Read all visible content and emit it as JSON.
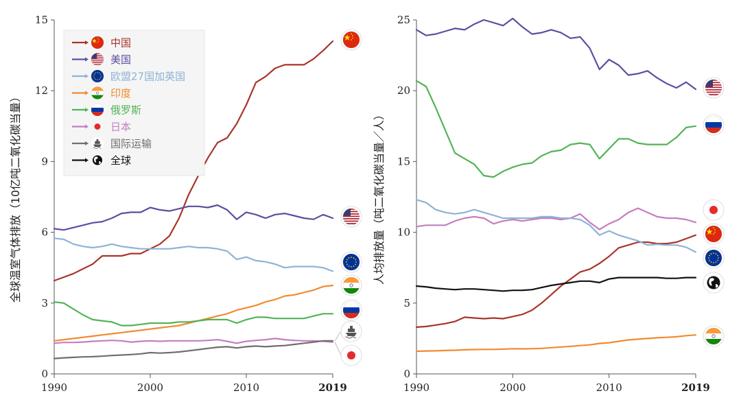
{
  "chart_data": [
    {
      "type": "line",
      "title": "",
      "xlabel": "",
      "ylabel": "全球温室气体排放（10亿吨二氧化碳当量）",
      "xlim": [
        1990,
        2019
      ],
      "ylim": [
        0,
        15
      ],
      "xticks": [
        "1990",
        "2000",
        "2010",
        "2019"
      ],
      "yticks": [
        "0",
        "3",
        "6",
        "9",
        "12",
        "15"
      ],
      "legend_position": "top-left",
      "series": [
        {
          "name": "中国",
          "color": "#a8342a",
          "icon": "china-flag-icon",
          "x": [
            1990,
            1991,
            1992,
            1993,
            1994,
            1995,
            1996,
            1997,
            1998,
            1999,
            2000,
            2001,
            2002,
            2003,
            2004,
            2005,
            2006,
            2007,
            2008,
            2009,
            2010,
            2011,
            2012,
            2013,
            2014,
            2015,
            2016,
            2017,
            2018,
            2019
          ],
          "values": [
            3.95,
            4.1,
            4.25,
            4.45,
            4.65,
            5.0,
            5.0,
            5.0,
            5.1,
            5.1,
            5.3,
            5.5,
            5.85,
            6.6,
            7.6,
            8.4,
            9.15,
            9.8,
            10.0,
            10.6,
            11.4,
            12.35,
            12.6,
            12.95,
            13.1,
            13.1,
            13.1,
            13.35,
            13.7,
            14.1
          ]
        },
        {
          "name": "美国",
          "color": "#5c4ea0",
          "icon": "usa-flag-icon",
          "x": [
            1990,
            1991,
            1992,
            1993,
            1994,
            1995,
            1996,
            1997,
            1998,
            1999,
            2000,
            2001,
            2002,
            2003,
            2004,
            2005,
            2006,
            2007,
            2008,
            2009,
            2010,
            2011,
            2012,
            2013,
            2014,
            2015,
            2016,
            2017,
            2018,
            2019
          ],
          "values": [
            6.15,
            6.1,
            6.2,
            6.3,
            6.4,
            6.45,
            6.6,
            6.8,
            6.85,
            6.85,
            7.05,
            6.95,
            6.9,
            7.0,
            7.1,
            7.1,
            7.05,
            7.15,
            6.95,
            6.55,
            6.85,
            6.75,
            6.6,
            6.75,
            6.8,
            6.7,
            6.6,
            6.55,
            6.75,
            6.6
          ]
        },
        {
          "name": "欧盟27国加英国",
          "color": "#8eb3d6",
          "icon": "eu-flag-icon",
          "x": [
            1990,
            1991,
            1992,
            1993,
            1994,
            1995,
            1996,
            1997,
            1998,
            1999,
            2000,
            2001,
            2002,
            2003,
            2004,
            2005,
            2006,
            2007,
            2008,
            2009,
            2010,
            2011,
            2012,
            2013,
            2014,
            2015,
            2016,
            2017,
            2018,
            2019
          ],
          "values": [
            5.75,
            5.7,
            5.5,
            5.4,
            5.35,
            5.4,
            5.5,
            5.4,
            5.35,
            5.3,
            5.3,
            5.3,
            5.3,
            5.35,
            5.4,
            5.35,
            5.35,
            5.3,
            5.2,
            4.85,
            4.95,
            4.8,
            4.75,
            4.65,
            4.5,
            4.55,
            4.55,
            4.55,
            4.5,
            4.35
          ]
        },
        {
          "name": "印度",
          "color": "#f28a30",
          "icon": "india-flag-icon",
          "x": [
            1990,
            1991,
            1992,
            1993,
            1994,
            1995,
            1996,
            1997,
            1998,
            1999,
            2000,
            2001,
            2002,
            2003,
            2004,
            2005,
            2006,
            2007,
            2008,
            2009,
            2010,
            2011,
            2012,
            2013,
            2014,
            2015,
            2016,
            2017,
            2018,
            2019
          ],
          "values": [
            1.4,
            1.45,
            1.5,
            1.55,
            1.6,
            1.65,
            1.7,
            1.75,
            1.8,
            1.85,
            1.9,
            1.95,
            2.0,
            2.05,
            2.15,
            2.25,
            2.35,
            2.45,
            2.55,
            2.7,
            2.8,
            2.9,
            3.05,
            3.15,
            3.3,
            3.35,
            3.45,
            3.55,
            3.7,
            3.75
          ]
        },
        {
          "name": "俄罗斯",
          "color": "#52b356",
          "icon": "russia-flag-icon",
          "x": [
            1990,
            1991,
            1992,
            1993,
            1994,
            1995,
            1996,
            1997,
            1998,
            1999,
            2000,
            2001,
            2002,
            2003,
            2004,
            2005,
            2006,
            2007,
            2008,
            2009,
            2010,
            2011,
            2012,
            2013,
            2014,
            2015,
            2016,
            2017,
            2018,
            2019
          ],
          "values": [
            3.05,
            3.0,
            2.75,
            2.5,
            2.3,
            2.25,
            2.2,
            2.05,
            2.05,
            2.1,
            2.15,
            2.15,
            2.15,
            2.2,
            2.2,
            2.25,
            2.3,
            2.3,
            2.3,
            2.15,
            2.3,
            2.4,
            2.4,
            2.35,
            2.35,
            2.35,
            2.35,
            2.45,
            2.55,
            2.55
          ]
        },
        {
          "name": "日本",
          "color": "#c47ec0",
          "icon": "japan-flag-icon",
          "x": [
            1990,
            1991,
            1992,
            1993,
            1994,
            1995,
            1996,
            1997,
            1998,
            1999,
            2000,
            2001,
            2002,
            2003,
            2004,
            2005,
            2006,
            2007,
            2008,
            2009,
            2010,
            2011,
            2012,
            2013,
            2014,
            2015,
            2016,
            2017,
            2018,
            2019
          ],
          "values": [
            1.3,
            1.33,
            1.33,
            1.35,
            1.38,
            1.4,
            1.42,
            1.4,
            1.35,
            1.38,
            1.4,
            1.38,
            1.4,
            1.4,
            1.4,
            1.4,
            1.42,
            1.45,
            1.38,
            1.3,
            1.38,
            1.42,
            1.45,
            1.5,
            1.45,
            1.42,
            1.4,
            1.4,
            1.38,
            1.35
          ]
        },
        {
          "name": "国际运输",
          "color": "#6e6e6e",
          "icon": "ship-icon",
          "x": [
            1990,
            1991,
            1992,
            1993,
            1994,
            1995,
            1996,
            1997,
            1998,
            1999,
            2000,
            2001,
            2002,
            2003,
            2004,
            2005,
            2006,
            2007,
            2008,
            2009,
            2010,
            2011,
            2012,
            2013,
            2014,
            2015,
            2016,
            2017,
            2018,
            2019
          ],
          "values": [
            0.65,
            0.68,
            0.7,
            0.72,
            0.73,
            0.75,
            0.78,
            0.8,
            0.82,
            0.85,
            0.9,
            0.88,
            0.9,
            0.93,
            0.98,
            1.03,
            1.08,
            1.13,
            1.15,
            1.1,
            1.15,
            1.18,
            1.15,
            1.18,
            1.2,
            1.25,
            1.3,
            1.35,
            1.4,
            1.4
          ]
        },
        {
          "name": "全球",
          "color": "#111111",
          "icon": "globe-icon",
          "x": [],
          "values": []
        }
      ]
    },
    {
      "type": "line",
      "title": "",
      "xlabel": "",
      "ylabel": "人均排放量（吨二氧化碳当量／人）",
      "xlim": [
        1990,
        2019
      ],
      "ylim": [
        0,
        25
      ],
      "xticks": [
        "1990",
        "2000",
        "2010",
        "2019"
      ],
      "yticks": [
        "0",
        "5",
        "10",
        "15",
        "20",
        "25"
      ],
      "series": [
        {
          "name": "美国",
          "color": "#5c4ea0",
          "icon": "usa-flag-icon",
          "x": [
            1990,
            1991,
            1992,
            1993,
            1994,
            1995,
            1996,
            1997,
            1998,
            1999,
            2000,
            2001,
            2002,
            2003,
            2004,
            2005,
            2006,
            2007,
            2008,
            2009,
            2010,
            2011,
            2012,
            2013,
            2014,
            2015,
            2016,
            2017,
            2018,
            2019
          ],
          "values": [
            24.3,
            23.9,
            24.0,
            24.2,
            24.4,
            24.3,
            24.7,
            25.0,
            24.8,
            24.6,
            25.1,
            24.5,
            24.0,
            24.1,
            24.3,
            24.1,
            23.7,
            23.8,
            23.0,
            21.5,
            22.2,
            21.8,
            21.1,
            21.2,
            21.4,
            20.9,
            20.5,
            20.2,
            20.6,
            20.1
          ]
        },
        {
          "name": "俄罗斯",
          "color": "#52b356",
          "icon": "russia-flag-icon",
          "x": [
            1990,
            1991,
            1992,
            1993,
            1994,
            1995,
            1996,
            1997,
            1998,
            1999,
            2000,
            2001,
            2002,
            2003,
            2004,
            2005,
            2006,
            2007,
            2008,
            2009,
            2010,
            2011,
            2012,
            2013,
            2014,
            2015,
            2016,
            2017,
            2018,
            2019
          ],
          "values": [
            20.7,
            20.3,
            18.8,
            17.2,
            15.6,
            15.2,
            14.8,
            14.0,
            13.9,
            14.3,
            14.6,
            14.8,
            14.9,
            15.4,
            15.7,
            15.8,
            16.2,
            16.3,
            16.2,
            15.2,
            15.9,
            16.6,
            16.6,
            16.3,
            16.2,
            16.2,
            16.2,
            16.7,
            17.4,
            17.5
          ]
        },
        {
          "name": "日本",
          "color": "#c47ec0",
          "icon": "japan-flag-icon",
          "x": [
            1990,
            1991,
            1992,
            1993,
            1994,
            1995,
            1996,
            1997,
            1998,
            1999,
            2000,
            2001,
            2002,
            2003,
            2004,
            2005,
            2006,
            2007,
            2008,
            2009,
            2010,
            2011,
            2012,
            2013,
            2014,
            2015,
            2016,
            2017,
            2018,
            2019
          ],
          "values": [
            10.4,
            10.5,
            10.5,
            10.5,
            10.8,
            11.0,
            11.1,
            11.0,
            10.6,
            10.8,
            10.9,
            10.8,
            10.9,
            11.0,
            11.0,
            10.9,
            11.0,
            11.3,
            10.7,
            10.2,
            10.6,
            10.9,
            11.4,
            11.7,
            11.4,
            11.1,
            11.0,
            11.0,
            10.9,
            10.7
          ]
        },
        {
          "name": "中国",
          "color": "#a8342a",
          "icon": "china-flag-icon",
          "x": [
            1990,
            1991,
            1992,
            1993,
            1994,
            1995,
            1996,
            1997,
            1998,
            1999,
            2000,
            2001,
            2002,
            2003,
            2004,
            2005,
            2006,
            2007,
            2008,
            2009,
            2010,
            2011,
            2012,
            2013,
            2014,
            2015,
            2016,
            2017,
            2018,
            2019
          ],
          "values": [
            3.3,
            3.35,
            3.45,
            3.55,
            3.7,
            4.0,
            3.95,
            3.9,
            3.95,
            3.9,
            4.05,
            4.2,
            4.5,
            5.0,
            5.6,
            6.2,
            6.7,
            7.2,
            7.4,
            7.8,
            8.3,
            8.9,
            9.1,
            9.3,
            9.3,
            9.2,
            9.2,
            9.3,
            9.55,
            9.8
          ]
        },
        {
          "name": "欧盟27国加英国",
          "color": "#8eb3d6",
          "icon": "eu-flag-icon",
          "x": [
            1990,
            1991,
            1992,
            1993,
            1994,
            1995,
            1996,
            1997,
            1998,
            1999,
            2000,
            2001,
            2002,
            2003,
            2004,
            2005,
            2006,
            2007,
            2008,
            2009,
            2010,
            2011,
            2012,
            2013,
            2014,
            2015,
            2016,
            2017,
            2018,
            2019
          ],
          "values": [
            12.3,
            12.1,
            11.6,
            11.4,
            11.3,
            11.4,
            11.6,
            11.4,
            11.2,
            11.0,
            11.0,
            11.0,
            11.0,
            11.1,
            11.1,
            11.0,
            11.0,
            10.9,
            10.5,
            9.8,
            10.1,
            9.8,
            9.6,
            9.4,
            9.1,
            9.15,
            9.1,
            9.1,
            8.95,
            8.6
          ]
        },
        {
          "name": "全球",
          "color": "#111111",
          "icon": "globe-icon",
          "x": [
            1990,
            1991,
            1992,
            1993,
            1994,
            1995,
            1996,
            1997,
            1998,
            1999,
            2000,
            2001,
            2002,
            2003,
            2004,
            2005,
            2006,
            2007,
            2008,
            2009,
            2010,
            2011,
            2012,
            2013,
            2014,
            2015,
            2016,
            2017,
            2018,
            2019
          ],
          "values": [
            6.2,
            6.15,
            6.05,
            6.0,
            5.95,
            6.0,
            6.0,
            5.95,
            5.9,
            5.85,
            5.9,
            5.9,
            5.95,
            6.1,
            6.25,
            6.35,
            6.45,
            6.55,
            6.55,
            6.45,
            6.7,
            6.8,
            6.8,
            6.8,
            6.8,
            6.8,
            6.75,
            6.75,
            6.8,
            6.8
          ]
        },
        {
          "name": "印度",
          "color": "#f28a30",
          "icon": "india-flag-icon",
          "x": [
            1990,
            1991,
            1992,
            1993,
            1994,
            1995,
            1996,
            1997,
            1998,
            1999,
            2000,
            2001,
            2002,
            2003,
            2004,
            2005,
            2006,
            2007,
            2008,
            2009,
            2010,
            2011,
            2012,
            2013,
            2014,
            2015,
            2016,
            2017,
            2018,
            2019
          ],
          "values": [
            1.6,
            1.62,
            1.63,
            1.65,
            1.67,
            1.7,
            1.72,
            1.73,
            1.73,
            1.75,
            1.78,
            1.77,
            1.78,
            1.8,
            1.85,
            1.9,
            1.95,
            2.0,
            2.05,
            2.15,
            2.2,
            2.3,
            2.4,
            2.45,
            2.5,
            2.55,
            2.58,
            2.62,
            2.7,
            2.75
          ]
        }
      ]
    }
  ]
}
